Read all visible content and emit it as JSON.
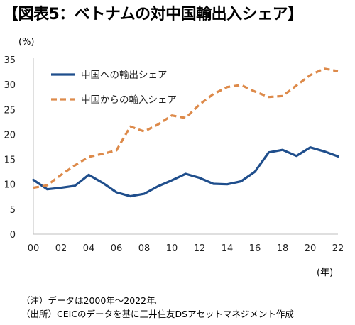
{
  "title": "【図表5：ベトナムの対中国輸出入シェア】",
  "y_unit": "(%)",
  "x_unit": "(年)",
  "notes": [
    "（注）データは2000年～2022年。",
    "（出所）CEICのデータを基に三井住友DSアセットマネジメント作成"
  ],
  "chart_data": {
    "type": "line",
    "x": [
      0,
      1,
      2,
      3,
      4,
      5,
      6,
      7,
      8,
      9,
      10,
      11,
      12,
      13,
      14,
      15,
      16,
      17,
      18,
      19,
      20,
      21,
      22
    ],
    "x_tick_values": [
      0,
      2,
      4,
      6,
      8,
      10,
      12,
      14,
      16,
      18,
      20,
      22
    ],
    "x_tick_labels": [
      "00",
      "02",
      "04",
      "06",
      "08",
      "10",
      "12",
      "14",
      "16",
      "18",
      "20",
      "22"
    ],
    "ylim": [
      0,
      35
    ],
    "y_ticks": [
      0,
      5,
      10,
      15,
      20,
      25,
      30,
      35
    ],
    "grid": false,
    "legend": "top-left",
    "series": [
      {
        "name": "中国への輸出シェア",
        "color": "#1f4e8c",
        "style": "solid",
        "values": [
          10.9,
          9.0,
          9.3,
          9.7,
          11.9,
          10.3,
          8.4,
          7.6,
          8.1,
          9.6,
          10.8,
          12.1,
          11.3,
          10.1,
          10.0,
          10.6,
          12.5,
          16.4,
          16.9,
          15.7,
          17.4,
          16.6,
          15.6
        ]
      },
      {
        "name": "中国からの輸入シェア",
        "color": "#dd8a4a",
        "style": "dashed",
        "values": [
          9.3,
          9.8,
          11.9,
          13.8,
          15.5,
          16.1,
          16.8,
          21.6,
          20.6,
          22.0,
          23.8,
          23.3,
          26.0,
          28.1,
          29.5,
          29.9,
          28.6,
          27.5,
          27.7,
          29.8,
          31.9,
          33.2,
          32.7
        ]
      }
    ]
  }
}
